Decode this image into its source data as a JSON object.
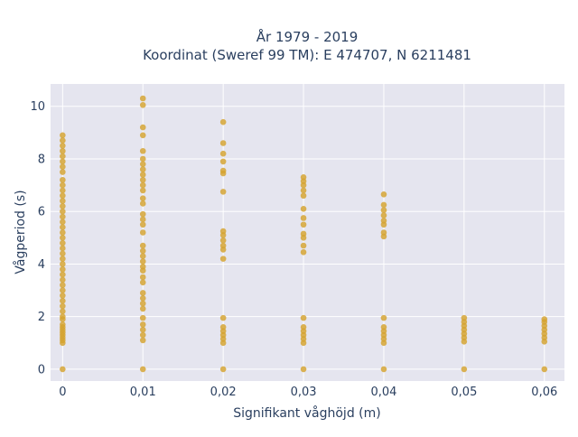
{
  "chart_data": {
    "type": "scatter",
    "title_lines": [
      "År 1979 - 2019",
      "Koordinat (Sweref 99 TM): E 474707, N 6211481"
    ],
    "xlabel": "Signifikant våghöjd (m)",
    "ylabel": "Vågperiod (s)",
    "xlim": [
      -0.0015,
      0.0625
    ],
    "ylim": [
      -0.45,
      10.85
    ],
    "x_ticks": [
      0,
      0.01,
      0.02,
      0.03,
      0.04,
      0.05,
      0.06
    ],
    "x_tick_labels": [
      "0",
      "0,01",
      "0,02",
      "0,03",
      "0,04",
      "0,05",
      "0,06"
    ],
    "y_ticks": [
      0,
      2,
      4,
      6,
      8,
      10
    ],
    "y_tick_labels": [
      "0",
      "2",
      "4",
      "6",
      "8",
      "10"
    ],
    "grid": true,
    "legend": "none",
    "series": [
      {
        "color": "#d4a22e",
        "points": [
          {
            "x": 0,
            "y": 0
          },
          {
            "x": 0,
            "y": 1.0
          },
          {
            "x": 0,
            "y": 1.1
          },
          {
            "x": 0,
            "y": 1.2
          },
          {
            "x": 0,
            "y": 1.3
          },
          {
            "x": 0,
            "y": 1.4
          },
          {
            "x": 0,
            "y": 1.5
          },
          {
            "x": 0,
            "y": 1.6
          },
          {
            "x": 0,
            "y": 1.7
          },
          {
            "x": 0,
            "y": 1.9
          },
          {
            "x": 0,
            "y": 2.0
          },
          {
            "x": 0,
            "y": 2.2
          },
          {
            "x": 0,
            "y": 2.4
          },
          {
            "x": 0,
            "y": 2.6
          },
          {
            "x": 0,
            "y": 2.8
          },
          {
            "x": 0,
            "y": 3.0
          },
          {
            "x": 0,
            "y": 3.2
          },
          {
            "x": 0,
            "y": 3.4
          },
          {
            "x": 0,
            "y": 3.6
          },
          {
            "x": 0,
            "y": 3.8
          },
          {
            "x": 0,
            "y": 4.0
          },
          {
            "x": 0,
            "y": 4.2
          },
          {
            "x": 0,
            "y": 4.4
          },
          {
            "x": 0,
            "y": 4.6
          },
          {
            "x": 0,
            "y": 4.8
          },
          {
            "x": 0,
            "y": 5.0
          },
          {
            "x": 0,
            "y": 5.2
          },
          {
            "x": 0,
            "y": 5.4
          },
          {
            "x": 0,
            "y": 5.6
          },
          {
            "x": 0,
            "y": 5.8
          },
          {
            "x": 0,
            "y": 6.0
          },
          {
            "x": 0,
            "y": 6.2
          },
          {
            "x": 0,
            "y": 6.4
          },
          {
            "x": 0,
            "y": 6.6
          },
          {
            "x": 0,
            "y": 6.8
          },
          {
            "x": 0,
            "y": 7.0
          },
          {
            "x": 0,
            "y": 7.2
          },
          {
            "x": 0,
            "y": 7.5
          },
          {
            "x": 0,
            "y": 7.7
          },
          {
            "x": 0,
            "y": 7.9
          },
          {
            "x": 0,
            "y": 8.1
          },
          {
            "x": 0,
            "y": 8.3
          },
          {
            "x": 0,
            "y": 8.5
          },
          {
            "x": 0,
            "y": 8.7
          },
          {
            "x": 0,
            "y": 8.9
          },
          {
            "x": 0.01,
            "y": 0
          },
          {
            "x": 0.01,
            "y": 1.1
          },
          {
            "x": 0.01,
            "y": 1.3
          },
          {
            "x": 0.01,
            "y": 1.5
          },
          {
            "x": 0.01,
            "y": 1.7
          },
          {
            "x": 0.01,
            "y": 1.95
          },
          {
            "x": 0.01,
            "y": 2.3
          },
          {
            "x": 0.01,
            "y": 2.5
          },
          {
            "x": 0.01,
            "y": 2.7
          },
          {
            "x": 0.01,
            "y": 2.9
          },
          {
            "x": 0.01,
            "y": 3.3
          },
          {
            "x": 0.01,
            "y": 3.5
          },
          {
            "x": 0.01,
            "y": 3.75
          },
          {
            "x": 0.01,
            "y": 3.9
          },
          {
            "x": 0.01,
            "y": 4.1
          },
          {
            "x": 0.01,
            "y": 4.3
          },
          {
            "x": 0.01,
            "y": 4.5
          },
          {
            "x": 0.01,
            "y": 4.7
          },
          {
            "x": 0.01,
            "y": 5.2
          },
          {
            "x": 0.01,
            "y": 5.5
          },
          {
            "x": 0.01,
            "y": 5.7
          },
          {
            "x": 0.01,
            "y": 5.9
          },
          {
            "x": 0.01,
            "y": 6.3
          },
          {
            "x": 0.01,
            "y": 6.5
          },
          {
            "x": 0.01,
            "y": 6.8
          },
          {
            "x": 0.01,
            "y": 7.0
          },
          {
            "x": 0.01,
            "y": 7.2
          },
          {
            "x": 0.01,
            "y": 7.4
          },
          {
            "x": 0.01,
            "y": 7.6
          },
          {
            "x": 0.01,
            "y": 7.8
          },
          {
            "x": 0.01,
            "y": 8.0
          },
          {
            "x": 0.01,
            "y": 8.3
          },
          {
            "x": 0.01,
            "y": 8.9
          },
          {
            "x": 0.01,
            "y": 9.2
          },
          {
            "x": 0.01,
            "y": 10.05
          },
          {
            "x": 0.01,
            "y": 10.3
          },
          {
            "x": 0.02,
            "y": 0
          },
          {
            "x": 0.02,
            "y": 1.0
          },
          {
            "x": 0.02,
            "y": 1.15
          },
          {
            "x": 0.02,
            "y": 1.3
          },
          {
            "x": 0.02,
            "y": 1.45
          },
          {
            "x": 0.02,
            "y": 1.6
          },
          {
            "x": 0.02,
            "y": 1.95
          },
          {
            "x": 0.02,
            "y": 4.2
          },
          {
            "x": 0.02,
            "y": 4.55
          },
          {
            "x": 0.02,
            "y": 4.7
          },
          {
            "x": 0.02,
            "y": 4.9
          },
          {
            "x": 0.02,
            "y": 5.1
          },
          {
            "x": 0.02,
            "y": 5.25
          },
          {
            "x": 0.02,
            "y": 6.75
          },
          {
            "x": 0.02,
            "y": 7.45
          },
          {
            "x": 0.02,
            "y": 7.55
          },
          {
            "x": 0.02,
            "y": 7.9
          },
          {
            "x": 0.02,
            "y": 8.2
          },
          {
            "x": 0.02,
            "y": 8.6
          },
          {
            "x": 0.02,
            "y": 9.4
          },
          {
            "x": 0.03,
            "y": 0
          },
          {
            "x": 0.03,
            "y": 1.0
          },
          {
            "x": 0.03,
            "y": 1.15
          },
          {
            "x": 0.03,
            "y": 1.3
          },
          {
            "x": 0.03,
            "y": 1.45
          },
          {
            "x": 0.03,
            "y": 1.6
          },
          {
            "x": 0.03,
            "y": 1.95
          },
          {
            "x": 0.03,
            "y": 4.45
          },
          {
            "x": 0.03,
            "y": 4.7
          },
          {
            "x": 0.03,
            "y": 5.0
          },
          {
            "x": 0.03,
            "y": 5.15
          },
          {
            "x": 0.03,
            "y": 5.5
          },
          {
            "x": 0.03,
            "y": 5.75
          },
          {
            "x": 0.03,
            "y": 6.1
          },
          {
            "x": 0.03,
            "y": 6.6
          },
          {
            "x": 0.03,
            "y": 6.8
          },
          {
            "x": 0.03,
            "y": 7.0
          },
          {
            "x": 0.03,
            "y": 7.15
          },
          {
            "x": 0.03,
            "y": 7.3
          },
          {
            "x": 0.04,
            "y": 0
          },
          {
            "x": 0.04,
            "y": 1.0
          },
          {
            "x": 0.04,
            "y": 1.15
          },
          {
            "x": 0.04,
            "y": 1.3
          },
          {
            "x": 0.04,
            "y": 1.45
          },
          {
            "x": 0.04,
            "y": 1.6
          },
          {
            "x": 0.04,
            "y": 1.95
          },
          {
            "x": 0.04,
            "y": 5.05
          },
          {
            "x": 0.04,
            "y": 5.2
          },
          {
            "x": 0.04,
            "y": 5.5
          },
          {
            "x": 0.04,
            "y": 5.65
          },
          {
            "x": 0.04,
            "y": 5.85
          },
          {
            "x": 0.04,
            "y": 6.05
          },
          {
            "x": 0.04,
            "y": 6.25
          },
          {
            "x": 0.04,
            "y": 6.65
          },
          {
            "x": 0.05,
            "y": 0
          },
          {
            "x": 0.05,
            "y": 1.05
          },
          {
            "x": 0.05,
            "y": 1.2
          },
          {
            "x": 0.05,
            "y": 1.35
          },
          {
            "x": 0.05,
            "y": 1.5
          },
          {
            "x": 0.05,
            "y": 1.65
          },
          {
            "x": 0.05,
            "y": 1.8
          },
          {
            "x": 0.05,
            "y": 1.95
          },
          {
            "x": 0.06,
            "y": 0
          },
          {
            "x": 0.06,
            "y": 1.05
          },
          {
            "x": 0.06,
            "y": 1.2
          },
          {
            "x": 0.06,
            "y": 1.35
          },
          {
            "x": 0.06,
            "y": 1.5
          },
          {
            "x": 0.06,
            "y": 1.65
          },
          {
            "x": 0.06,
            "y": 1.8
          },
          {
            "x": 0.06,
            "y": 1.9
          }
        ]
      }
    ],
    "colors": {
      "plot_background": "#e5e5ef",
      "grid": "#ffffff",
      "marker": "#d4a22e",
      "text": "#2a3f5f"
    }
  }
}
